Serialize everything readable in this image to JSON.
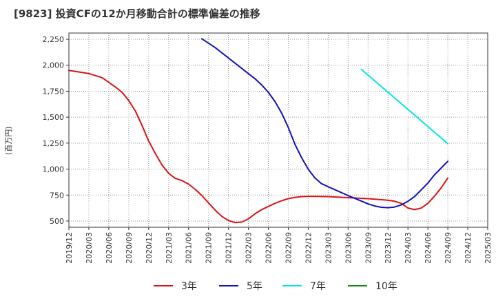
{
  "chart_data": {
    "type": "line",
    "title": "[9823]  投資CFの12か月移動合計の標準偏差の推移",
    "xlabel": "",
    "ylabel": "(百万円)",
    "ylim": [
      440,
      2310
    ],
    "yticks": [
      "500",
      "750",
      "1,000",
      "1,250",
      "1,500",
      "1,750",
      "2,000",
      "2,250"
    ],
    "yticks_values": [
      500,
      750,
      1000,
      1250,
      1500,
      1750,
      2000,
      2250
    ],
    "xticks": [
      "2019/12",
      "2020/03",
      "2020/06",
      "2020/09",
      "2020/12",
      "2021/03",
      "2021/06",
      "2021/09",
      "2021/12",
      "2022/03",
      "2022/06",
      "2022/09",
      "2022/12",
      "2023/03",
      "2023/06",
      "2023/09",
      "2023/12",
      "2024/03",
      "2024/06",
      "2024/09",
      "2024/12",
      "2025/03"
    ],
    "grid": true,
    "legend_position": "bottom",
    "series": [
      {
        "name": "3年",
        "color": "#dd1111",
        "points": [
          [
            "2019/12",
            1950
          ],
          [
            "2020/03",
            1920
          ],
          [
            "2020/05",
            1880
          ],
          [
            "2020/07",
            1790
          ],
          [
            "2020/08",
            1740
          ],
          [
            "2020/09",
            1660
          ],
          [
            "2020/10",
            1560
          ],
          [
            "2020/11",
            1420
          ],
          [
            "2020/12",
            1270
          ],
          [
            "2021/01",
            1150
          ],
          [
            "2021/02",
            1040
          ],
          [
            "2021/03",
            960
          ],
          [
            "2021/04",
            910
          ],
          [
            "2021/05",
            890
          ],
          [
            "2021/06",
            855
          ],
          [
            "2021/07",
            805
          ],
          [
            "2021/08",
            745
          ],
          [
            "2021/09",
            675
          ],
          [
            "2021/10",
            605
          ],
          [
            "2021/11",
            545
          ],
          [
            "2021/12",
            505
          ],
          [
            "2022/01",
            485
          ],
          [
            "2022/02",
            490
          ],
          [
            "2022/03",
            520
          ],
          [
            "2022/04",
            570
          ],
          [
            "2022/05",
            610
          ],
          [
            "2022/06",
            640
          ],
          [
            "2022/07",
            670
          ],
          [
            "2022/08",
            695
          ],
          [
            "2022/09",
            715
          ],
          [
            "2022/10",
            728
          ],
          [
            "2022/11",
            735
          ],
          [
            "2022/12",
            738
          ],
          [
            "2023/01",
            738
          ],
          [
            "2023/03",
            735
          ],
          [
            "2023/06",
            725
          ],
          [
            "2023/09",
            715
          ],
          [
            "2023/12",
            700
          ],
          [
            "2024/01",
            690
          ],
          [
            "2024/02",
            670
          ],
          [
            "2024/03",
            625
          ],
          [
            "2024/04",
            610
          ],
          [
            "2024/05",
            625
          ],
          [
            "2024/06",
            670
          ],
          [
            "2024/07",
            740
          ],
          [
            "2024/08",
            820
          ],
          [
            "2024/09",
            915
          ]
        ]
      },
      {
        "name": "5年",
        "color": "#1111bb",
        "points": [
          [
            "2021/08",
            2255
          ],
          [
            "2021/10",
            2170
          ],
          [
            "2021/12",
            2070
          ],
          [
            "2022/02",
            1970
          ],
          [
            "2022/04",
            1870
          ],
          [
            "2022/05",
            1810
          ],
          [
            "2022/06",
            1740
          ],
          [
            "2022/07",
            1650
          ],
          [
            "2022/08",
            1540
          ],
          [
            "2022/09",
            1400
          ],
          [
            "2022/10",
            1240
          ],
          [
            "2022/11",
            1110
          ],
          [
            "2022/12",
            1000
          ],
          [
            "2023/01",
            915
          ],
          [
            "2023/02",
            860
          ],
          [
            "2023/03",
            830
          ],
          [
            "2023/06",
            745
          ],
          [
            "2023/09",
            665
          ],
          [
            "2023/10",
            645
          ],
          [
            "2023/11",
            632
          ],
          [
            "2023/12",
            628
          ],
          [
            "2024/01",
            635
          ],
          [
            "2024/02",
            655
          ],
          [
            "2024/03",
            690
          ],
          [
            "2024/04",
            735
          ],
          [
            "2024/05",
            800
          ],
          [
            "2024/06",
            865
          ],
          [
            "2024/07",
            945
          ],
          [
            "2024/08",
            1010
          ],
          [
            "2024/09",
            1075
          ]
        ]
      },
      {
        "name": "7年",
        "color": "#00e5e5",
        "points": [
          [
            "2023/08",
            1960
          ],
          [
            "2024/09",
            1245
          ]
        ]
      },
      {
        "name": "10年",
        "color": "#118811",
        "points": []
      }
    ]
  }
}
